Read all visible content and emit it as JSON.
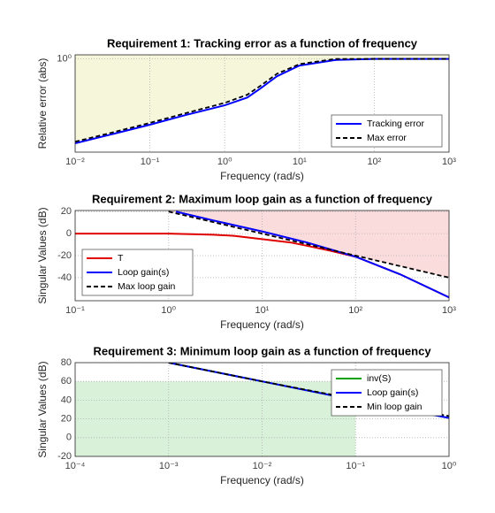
{
  "chart_data": [
    {
      "type": "line",
      "title": "Requirement 1: Tracking error as a function of frequency",
      "xlabel": "Frequency (rad/s)",
      "ylabel": "Relative error (abs)",
      "xscale": "log",
      "yscale": "log",
      "grid": true,
      "legend": "lower right",
      "xlim": [
        0.01,
        1000
      ],
      "ylim": [
        0.0001,
        1.5
      ],
      "xticks": [
        {
          "value": 0.01,
          "label": "10⁻²"
        },
        {
          "value": 0.1,
          "label": "10⁻¹"
        },
        {
          "value": 1,
          "label": "10⁰"
        },
        {
          "value": 10,
          "label": "10¹"
        },
        {
          "value": 100,
          "label": "10²"
        },
        {
          "value": 1000,
          "label": "10³"
        }
      ],
      "yticks": [
        {
          "value": 1,
          "label": "10⁰"
        }
      ],
      "series": [
        {
          "name": "Tracking error",
          "color": "#0000ff",
          "style": "solid",
          "x": [
            0.01,
            0.03,
            0.1,
            0.3,
            1,
            2,
            3,
            5,
            10,
            30,
            100,
            1000
          ],
          "values": [
            0.00024,
            0.00057,
            0.0015,
            0.0039,
            0.0102,
            0.022,
            0.054,
            0.18,
            0.52,
            0.9,
            1,
            1
          ]
        },
        {
          "name": "Max error",
          "color": "#000000",
          "style": "dashed",
          "fill": "#f6f6da",
          "x": [
            0.01,
            0.03,
            0.1,
            0.3,
            1,
            2,
            3,
            5,
            10,
            30,
            100,
            1000
          ],
          "values": [
            0.00028,
            0.00067,
            0.0018,
            0.0047,
            0.013,
            0.029,
            0.07,
            0.23,
            0.6,
            1,
            1,
            1
          ]
        }
      ]
    },
    {
      "type": "line",
      "title": "Requirement 2: Maximum loop gain as a function of frequency",
      "xlabel": "Frequency (rad/s)",
      "ylabel": "Singular Values (dB)",
      "xscale": "log",
      "yscale": "linear",
      "grid": true,
      "legend": "lower left",
      "xlim": [
        0.1,
        1000
      ],
      "ylim": [
        -61,
        21
      ],
      "xticks": [
        {
          "value": 0.1,
          "label": "10⁻¹"
        },
        {
          "value": 1,
          "label": "10⁰"
        },
        {
          "value": 10,
          "label": "10¹"
        },
        {
          "value": 100,
          "label": "10²"
        },
        {
          "value": 1000,
          "label": "10³"
        }
      ],
      "yticks": [
        -40,
        -20,
        0,
        20
      ],
      "series": [
        {
          "name": "T",
          "color": "#e00000",
          "style": "solid",
          "x": [
            0.1,
            1,
            3,
            5,
            10,
            20,
            30,
            50,
            100,
            300,
            1000
          ],
          "values": [
            0,
            0,
            -1,
            -2,
            -5,
            -8,
            -11,
            -15,
            -21,
            -37,
            -58
          ]
        },
        {
          "name": "Loop gain(s)",
          "color": "#0000ff",
          "style": "solid",
          "x": [
            1.2,
            3,
            10,
            30,
            100,
            300,
            1000
          ],
          "values": [
            20,
            12,
            2,
            -8,
            -21,
            -37,
            -58
          ]
        },
        {
          "name": "Max loop gain",
          "color": "#000000",
          "style": "dashed",
          "fill": "#fbdcdc",
          "x": [
            1,
            10,
            100,
            1000
          ],
          "values": [
            20,
            0,
            -20,
            -40
          ]
        }
      ]
    },
    {
      "type": "line",
      "title": "Requirement 3: Minimum loop gain as a function of frequency",
      "xlabel": "Frequency (rad/s)",
      "ylabel": "Singular Values (dB)",
      "xscale": "log",
      "yscale": "linear",
      "grid": true,
      "legend": "upper right",
      "xlim": [
        0.0001,
        1
      ],
      "ylim": [
        -20,
        80
      ],
      "xticks": [
        {
          "value": 0.0001,
          "label": "10⁻⁴"
        },
        {
          "value": 0.001,
          "label": "10⁻³"
        },
        {
          "value": 0.01,
          "label": "10⁻²"
        },
        {
          "value": 0.1,
          "label": "10⁻¹"
        },
        {
          "value": 1,
          "label": "10⁰"
        }
      ],
      "yticks": [
        -20,
        0,
        20,
        40,
        60,
        80
      ],
      "shaded_region": {
        "x": [
          0.0001,
          0.1
        ],
        "y": [
          -20,
          60
        ],
        "color": "#d9f1d9"
      },
      "series": [
        {
          "name": "inv(S)",
          "color": "#00a000",
          "style": "solid",
          "x": [
            0.001,
            0.01,
            0.1,
            1
          ],
          "values": [
            80,
            60,
            40,
            21
          ]
        },
        {
          "name": "Loop gain(s)",
          "color": "#0000ff",
          "style": "solid",
          "x": [
            0.001,
            0.01,
            0.1,
            1
          ],
          "values": [
            80,
            60,
            40,
            21
          ]
        },
        {
          "name": "Min loop gain",
          "color": "#000000",
          "style": "dashed",
          "x": [
            0.001,
            0.01,
            0.1,
            1
          ],
          "values": [
            80,
            60,
            41,
            23
          ]
        }
      ]
    }
  ]
}
